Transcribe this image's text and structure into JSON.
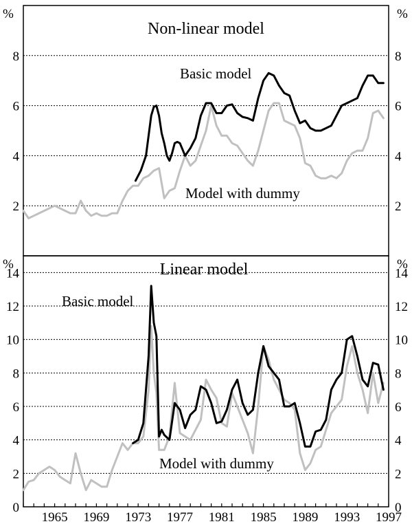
{
  "chart_data": [
    {
      "type": "line",
      "title": "Non-linear model",
      "unit_label_left": "%",
      "unit_label_right": "%",
      "ylim": [
        0,
        10
      ],
      "yticks": [
        2,
        4,
        6,
        8
      ],
      "xlim": [
        1962,
        1997
      ],
      "grid": true,
      "annotations": [
        "Basic model",
        "Model with dummy"
      ],
      "series": [
        {
          "name": "Basic model",
          "color": "#000000",
          "x": [
            1972.75,
            1973.25,
            1973.75,
            1974.0,
            1974.25,
            1974.5,
            1974.75,
            1975.0,
            1975.25,
            1975.5,
            1975.75,
            1976.0,
            1976.25,
            1976.5,
            1976.75,
            1977.0,
            1977.5,
            1978.0,
            1978.5,
            1979.0,
            1979.5,
            1980.0,
            1980.5,
            1981.0,
            1981.5,
            1982.0,
            1982.5,
            1983.0,
            1983.5,
            1984.0,
            1984.5,
            1985.0,
            1985.5,
            1986.0,
            1986.5,
            1987.0,
            1987.5,
            1988.0,
            1988.5,
            1989.0,
            1989.5,
            1990.0,
            1990.5,
            1991.0,
            1991.5,
            1992.0,
            1992.5,
            1993.0,
            1993.5,
            1994.0,
            1994.5,
            1995.0,
            1995.5,
            1996.0,
            1996.5
          ],
          "values": [
            3.0,
            3.4,
            4.0,
            4.8,
            5.6,
            5.95,
            6.0,
            5.6,
            4.9,
            4.5,
            4.0,
            3.8,
            4.1,
            4.5,
            4.55,
            4.5,
            4.0,
            4.3,
            4.7,
            5.6,
            6.1,
            6.1,
            5.7,
            5.7,
            6.0,
            6.05,
            5.7,
            5.55,
            5.5,
            5.4,
            6.3,
            7.0,
            7.3,
            7.2,
            6.8,
            6.5,
            6.4,
            5.8,
            5.3,
            5.4,
            5.1,
            5.0,
            5.0,
            5.1,
            5.2,
            5.6,
            6.0,
            6.1,
            6.2,
            6.3,
            6.8,
            7.2,
            7.2,
            6.9,
            6.9
          ]
        },
        {
          "name": "Model with dummy",
          "color": "#c0c0c0",
          "x": [
            1962.0,
            1962.5,
            1963.0,
            1963.5,
            1964.0,
            1964.5,
            1965.0,
            1965.5,
            1966.0,
            1966.5,
            1967.0,
            1967.5,
            1968.0,
            1968.5,
            1969.0,
            1969.5,
            1970.0,
            1970.5,
            1971.0,
            1971.5,
            1972.0,
            1972.5,
            1973.0,
            1973.5,
            1974.0,
            1974.5,
            1975.0,
            1975.5,
            1976.0,
            1976.5,
            1977.0,
            1977.5,
            1978.0,
            1978.5,
            1979.0,
            1979.5,
            1980.0,
            1980.5,
            1981.0,
            1981.5,
            1982.0,
            1982.5,
            1983.0,
            1983.5,
            1984.0,
            1984.5,
            1985.0,
            1985.5,
            1986.0,
            1986.5,
            1987.0,
            1987.5,
            1988.0,
            1988.5,
            1989.0,
            1989.5,
            1990.0,
            1990.5,
            1991.0,
            1991.5,
            1992.0,
            1992.5,
            1993.0,
            1993.5,
            1994.0,
            1994.5,
            1995.0,
            1995.5,
            1996.0,
            1996.5
          ],
          "values": [
            1.8,
            1.5,
            1.6,
            1.7,
            1.8,
            1.9,
            2.0,
            1.9,
            1.8,
            1.7,
            1.7,
            2.2,
            1.8,
            1.6,
            1.7,
            1.6,
            1.6,
            1.7,
            1.7,
            2.2,
            2.6,
            2.8,
            2.8,
            3.1,
            3.2,
            3.4,
            3.5,
            2.3,
            2.6,
            2.7,
            3.4,
            4.0,
            3.6,
            3.8,
            4.4,
            5.0,
            6.0,
            5.2,
            4.8,
            4.8,
            4.5,
            4.4,
            4.1,
            3.8,
            3.6,
            4.2,
            5.0,
            5.8,
            6.1,
            6.1,
            5.4,
            5.3,
            5.2,
            4.7,
            3.7,
            3.6,
            3.2,
            3.1,
            3.1,
            3.2,
            3.1,
            3.3,
            3.8,
            4.1,
            4.2,
            4.2,
            4.7,
            5.7,
            5.8,
            5.5
          ]
        }
      ]
    },
    {
      "type": "line",
      "title": "Linear model",
      "unit_label_left": "%",
      "unit_label_right": "%",
      "ylim": [
        0,
        15
      ],
      "yticks": [
        0,
        2,
        4,
        6,
        8,
        10,
        12,
        14
      ],
      "xlim": [
        1962,
        1997
      ],
      "xticks": [
        1965,
        1969,
        1973,
        1977,
        1981,
        1985,
        1989,
        1993,
        1997
      ],
      "grid": true,
      "annotations": [
        "Basic model",
        "Model with dummy"
      ],
      "series": [
        {
          "name": "Basic model",
          "color": "#000000",
          "x": [
            1972.5,
            1973.0,
            1973.5,
            1974.0,
            1974.25,
            1974.5,
            1974.75,
            1975.0,
            1975.25,
            1975.5,
            1976.0,
            1976.5,
            1977.0,
            1977.5,
            1978.0,
            1978.5,
            1979.0,
            1979.5,
            1980.0,
            1980.5,
            1981.0,
            1981.5,
            1982.0,
            1982.5,
            1983.0,
            1983.5,
            1984.0,
            1984.5,
            1985.0,
            1985.5,
            1986.0,
            1986.5,
            1987.0,
            1987.5,
            1988.0,
            1988.5,
            1989.0,
            1989.5,
            1990.0,
            1990.5,
            1991.0,
            1991.5,
            1992.0,
            1992.5,
            1993.0,
            1993.5,
            1994.0,
            1994.5,
            1995.0,
            1995.5,
            1996.0,
            1996.5
          ],
          "values": [
            3.8,
            4.0,
            5.0,
            9.0,
            13.2,
            11.0,
            10.2,
            4.2,
            4.6,
            4.3,
            4.0,
            6.2,
            5.8,
            4.7,
            5.5,
            5.8,
            7.2,
            7.0,
            6.2,
            5.0,
            5.1,
            5.8,
            7.0,
            7.6,
            6.2,
            5.5,
            5.8,
            8.0,
            9.6,
            8.4,
            8.0,
            7.6,
            6.0,
            6.0,
            6.2,
            5.0,
            3.6,
            3.6,
            4.5,
            4.6,
            5.2,
            7.0,
            7.6,
            8.0,
            10.0,
            10.2,
            9.0,
            7.6,
            7.2,
            8.6,
            8.5,
            7.0
          ]
        },
        {
          "name": "Model with dummy",
          "color": "#c0c0c0",
          "x": [
            1962.0,
            1962.5,
            1963.0,
            1963.5,
            1964.0,
            1964.5,
            1965.0,
            1965.5,
            1966.0,
            1966.5,
            1967.0,
            1967.5,
            1968.0,
            1968.5,
            1969.0,
            1969.5,
            1970.0,
            1970.5,
            1971.0,
            1971.5,
            1972.0,
            1972.5,
            1973.0,
            1973.5,
            1974.0,
            1974.25,
            1974.5,
            1974.75,
            1975.0,
            1975.5,
            1976.0,
            1976.5,
            1977.0,
            1977.5,
            1978.0,
            1978.5,
            1979.0,
            1979.5,
            1980.0,
            1980.5,
            1981.0,
            1981.5,
            1982.0,
            1982.5,
            1983.0,
            1983.5,
            1984.0,
            1984.5,
            1985.0,
            1985.5,
            1986.0,
            1986.5,
            1987.0,
            1987.5,
            1988.0,
            1988.5,
            1989.0,
            1989.5,
            1990.0,
            1990.5,
            1991.0,
            1991.5,
            1992.0,
            1992.5,
            1993.0,
            1993.5,
            1994.0,
            1994.5,
            1995.0,
            1995.5,
            1996.0,
            1996.5
          ],
          "values": [
            1.0,
            1.5,
            1.6,
            2.0,
            2.2,
            2.4,
            2.2,
            1.8,
            1.6,
            1.4,
            3.2,
            2.0,
            1.0,
            1.6,
            1.4,
            1.2,
            1.2,
            2.2,
            3.0,
            3.8,
            3.4,
            3.8,
            3.8,
            4.2,
            7.0,
            10.8,
            8.0,
            6.8,
            3.4,
            3.4,
            4.2,
            7.4,
            4.4,
            4.2,
            4.0,
            4.6,
            5.2,
            7.6,
            7.0,
            6.5,
            5.0,
            4.8,
            6.8,
            6.0,
            5.2,
            4.4,
            3.2,
            6.0,
            9.6,
            8.8,
            7.6,
            7.0,
            6.4,
            6.2,
            5.8,
            3.2,
            2.2,
            2.6,
            3.4,
            3.6,
            4.6,
            5.6,
            6.0,
            6.4,
            8.4,
            9.6,
            8.0,
            7.0,
            5.6,
            8.0,
            6.2,
            7.4
          ]
        }
      ]
    }
  ]
}
